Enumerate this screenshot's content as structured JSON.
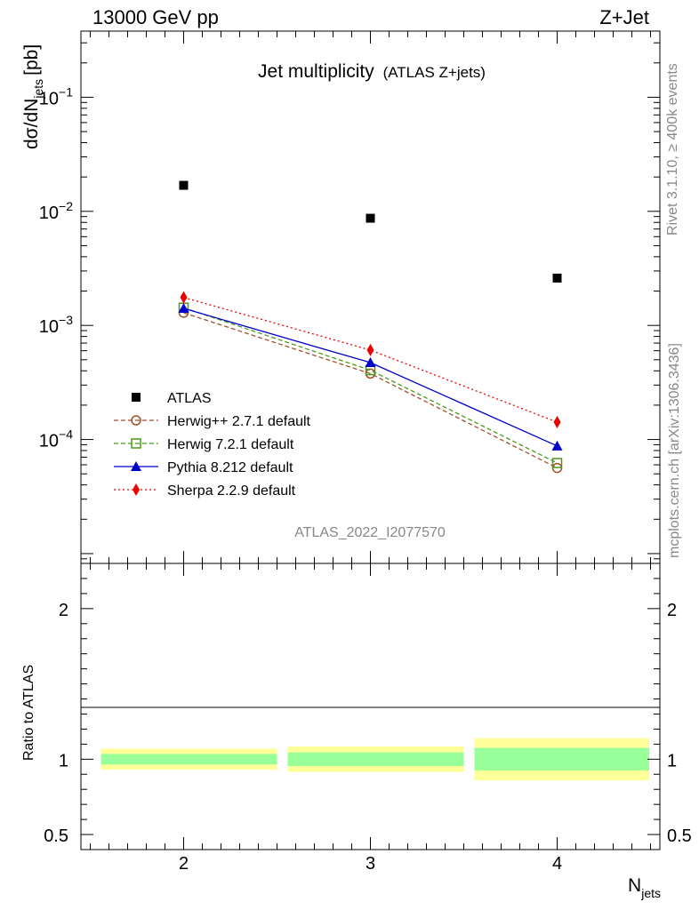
{
  "header": {
    "left": "13000 GeV pp",
    "right": "Z+Jet"
  },
  "side_texts": {
    "top": "Rivet 3.1.10, ≥ 400k events",
    "bottom": "mcplots.cern.ch [arXiv:1306.3436]"
  },
  "watermark": "ATLAS_2022_I2077570",
  "chart_data": {
    "type": "scatter",
    "title": "Jet multiplicity",
    "subtitle": "(ATLAS Z+jets)",
    "xlabel": "N",
    "xlabel_sub": "jets",
    "ylabel": "dσ/dN",
    "ylabel_sub": "jets",
    "ylabel_unit": "[pb]",
    "x": [
      2,
      3,
      4
    ],
    "xlim": [
      1.45,
      4.55
    ],
    "x_ticks": [
      "2",
      "3",
      "4"
    ],
    "ylim": [
      8.2e-06,
      0.38
    ],
    "yscale": "log",
    "y_ticks": [
      {
        "base": "10",
        "exp": "−1",
        "value": 0.1
      },
      {
        "base": "10",
        "exp": "−2",
        "value": 0.01
      },
      {
        "base": "10",
        "exp": "−3",
        "value": 0.001
      },
      {
        "base": "10",
        "exp": "−4",
        "value": 0.0001
      }
    ],
    "series": [
      {
        "name": "ATLAS",
        "values": [
          0.0169,
          0.0087,
          0.0026
        ],
        "color": "#000000",
        "marker": "square",
        "line": "none"
      },
      {
        "name": "Herwig++ 2.7.1 default",
        "values": [
          0.00129,
          0.000378,
          5.63e-05
        ],
        "color": "#a0522d",
        "marker": "open-circle",
        "line": "dashed"
      },
      {
        "name": "Herwig 7.2.1 default",
        "values": [
          0.00143,
          0.000405,
          6.22e-05
        ],
        "color": "#4a9a1a",
        "marker": "open-square",
        "line": "dashed"
      },
      {
        "name": "Pythia 8.212 default",
        "values": [
          0.00141,
          0.000472,
          8.78e-05
        ],
        "color": "#0000cc",
        "marker": "triangle",
        "line": "solid"
      },
      {
        "name": "Sherpa 2.2.9 default",
        "values": [
          0.00176,
          0.000608,
          0.000142
        ],
        "color": "#ee0000",
        "marker": "diamond",
        "line": "dotted"
      }
    ],
    "ratio": {
      "ylabel": "Ratio to ATLAS",
      "ylim": [
        0.4,
        2.3
      ],
      "y_ticks": [
        "0.5",
        "1",
        "2"
      ],
      "y_tick_values": [
        0.5,
        1,
        2
      ],
      "bins": [
        {
          "lo": 1.5,
          "hi": 2.5,
          "stat": [
            0.965,
            1.035
          ],
          "total": [
            0.93,
            1.07
          ]
        },
        {
          "lo": 2.5,
          "hi": 3.5,
          "stat": [
            0.955,
            1.045
          ],
          "total": [
            0.915,
            1.085
          ]
        },
        {
          "lo": 3.5,
          "hi": 4.55,
          "stat": [
            0.925,
            1.075
          ],
          "total": [
            0.86,
            1.14
          ]
        }
      ],
      "colors": {
        "stat": "#99ff99",
        "total": "#ffff99"
      }
    }
  }
}
